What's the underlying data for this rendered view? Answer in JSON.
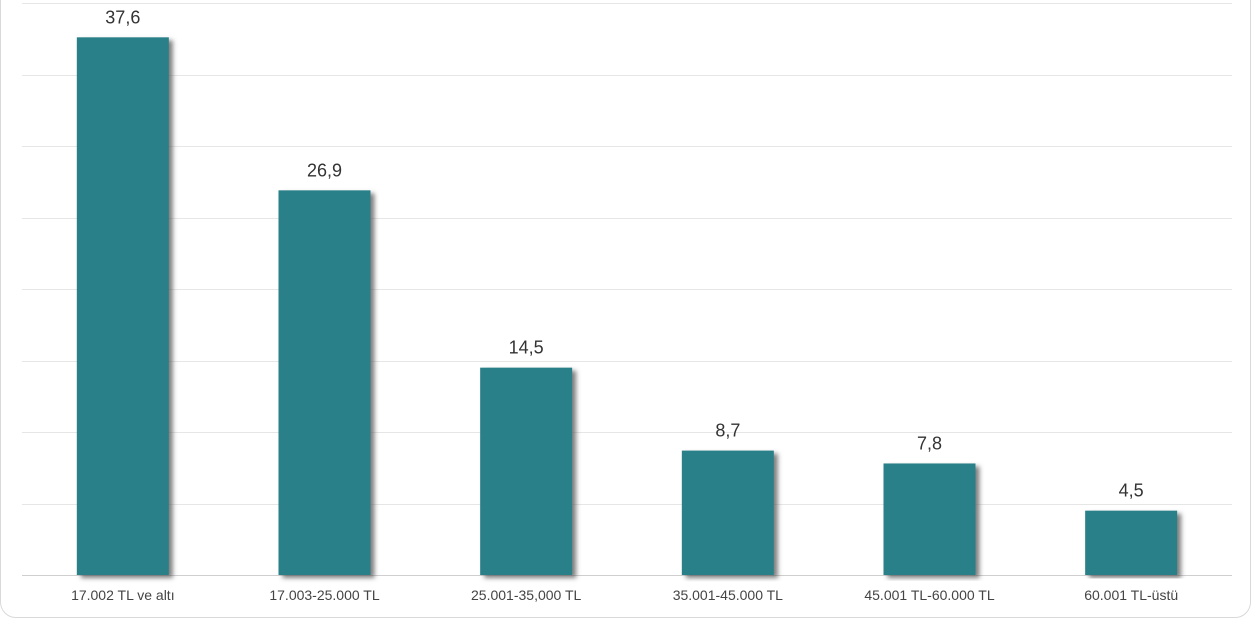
{
  "chart_data": {
    "type": "bar",
    "categories": [
      "17.002 TL ve altı",
      "17.003-25.000 TL",
      "25.001-35,000 TL",
      "35.001-45.000 TL",
      "45.001 TL-60.000 TL",
      "60.001 TL-üstü"
    ],
    "values": [
      37.6,
      26.9,
      14.5,
      8.7,
      7.8,
      4.5
    ],
    "value_labels": [
      "37,6",
      "26,9",
      "14,5",
      "8,7",
      "7,8",
      "4,5"
    ],
    "ylim": [
      0,
      40
    ],
    "grid": true,
    "colors": {
      "bar": "#2b8088",
      "bar_shadow": "#6b6b6b",
      "grid": "#e6e6e6",
      "axis": "#cfcfcf"
    }
  }
}
